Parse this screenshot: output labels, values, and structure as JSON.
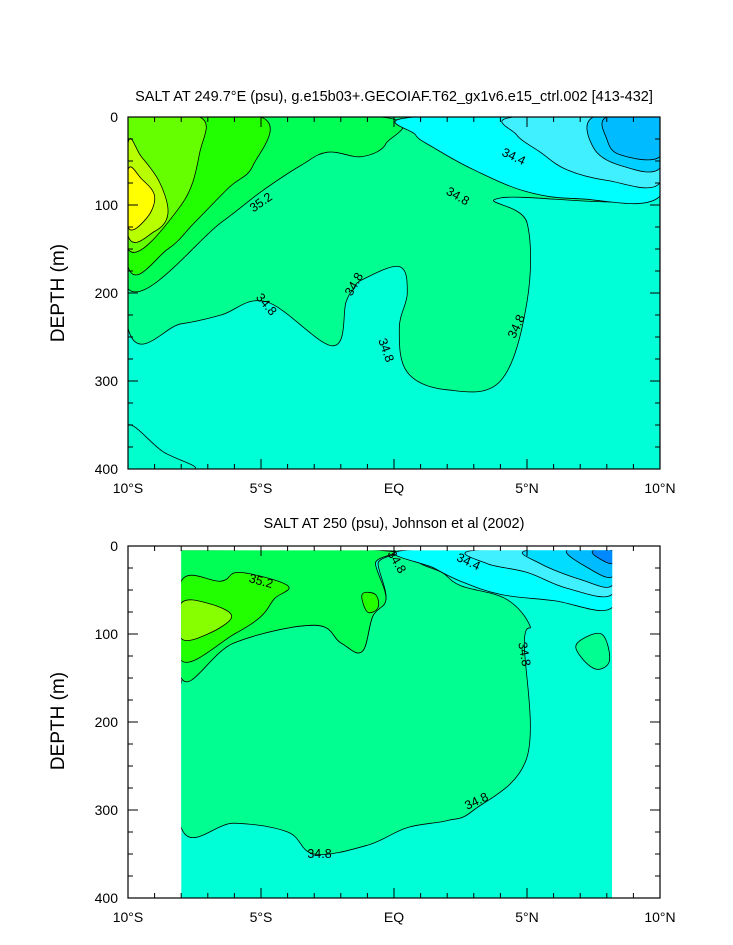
{
  "chart_data": [
    {
      "type": "contour",
      "title": "SALT AT 249.7°E (psu), g.e15b03+.GECOIAF.T62_gx1v6.e15_ctrl.002 [413-432]",
      "ylabel": "DEPTH (m)",
      "xlabel": "",
      "x_ticks": [
        "10°S",
        "5°S",
        "EQ",
        "5°N",
        "10°N"
      ],
      "x_tick_values": [
        -10,
        -5,
        0,
        5,
        10
      ],
      "y_ticks": [
        "0",
        "100",
        "200",
        "300",
        "400"
      ],
      "y_tick_values": [
        0,
        100,
        200,
        300,
        400
      ],
      "xlim": [
        -10,
        10
      ],
      "ylim": [
        400,
        0
      ],
      "y_inverted": true,
      "contour_interval": 0.2,
      "contour_labels": [
        {
          "text": "35.2",
          "x": -5,
          "y": 97,
          "rot": -35
        },
        {
          "text": "34.4",
          "x": 4.5,
          "y": 45,
          "rot": 25
        },
        {
          "text": "34.8",
          "x": 2.4,
          "y": 90,
          "rot": 30
        },
        {
          "text": "34.8",
          "x": -1.5,
          "y": 190,
          "rot": -60
        },
        {
          "text": "34.8",
          "x": -4.8,
          "y": 213,
          "rot": 50
        },
        {
          "text": "34.8",
          "x": -0.3,
          "y": 265,
          "rot": 70
        },
        {
          "text": "34.8",
          "x": 4.6,
          "y": 238,
          "rot": -65
        }
      ],
      "filled_regions": [
        {
          "level": "34.8-35.0",
          "color": "#00ff90",
          "pts": [
            [
              -10,
              0
            ],
            [
              10,
              0
            ],
            [
              10,
              90
            ],
            [
              4,
              92
            ],
            [
              5,
              120
            ],
            [
              5,
              210
            ],
            [
              4,
              300
            ],
            [
              2,
              310
            ],
            [
              0.5,
              290
            ],
            [
              0.2,
              240
            ],
            [
              0.5,
              200
            ],
            [
              0.2,
              170
            ],
            [
              -1.2,
              185
            ],
            [
              -1.5,
              195
            ],
            [
              -1.8,
              210
            ],
            [
              -2.3,
              260
            ],
            [
              -4.8,
              210
            ],
            [
              -6.5,
              225
            ],
            [
              -8,
              235
            ],
            [
              -10,
              240
            ]
          ]
        },
        {
          "level": "35.0-35.2",
          "color": "#00ff55",
          "pts": [
            [
              -10,
              0
            ],
            [
              -0.5,
              0
            ],
            [
              -0.3,
              30
            ],
            [
              -1.2,
              45
            ],
            [
              -2.5,
              40
            ],
            [
              -3.5,
              55
            ],
            [
              -5,
              85
            ],
            [
              -6.5,
              120
            ],
            [
              -10,
              195
            ]
          ]
        },
        {
          "level": "35.2-35.4",
          "color": "#22ff00",
          "pts": [
            [
              -10,
              0
            ],
            [
              -5,
              0
            ],
            [
              -5.3,
              55
            ],
            [
              -6.2,
              80
            ],
            [
              -7.5,
              120
            ],
            [
              -8.5,
              150
            ],
            [
              -10,
              170
            ]
          ]
        },
        {
          "level": "35.4-35.6",
          "color": "#66ff00",
          "pts": [
            [
              -10,
              0
            ],
            [
              -7.3,
              0
            ],
            [
              -7.3,
              40
            ],
            [
              -8,
              100
            ],
            [
              -10,
              150
            ]
          ]
        },
        {
          "level": "35.6-35.8",
          "color": "#b8ff00",
          "pts": [
            [
              -10,
              30
            ],
            [
              -9.5,
              45
            ],
            [
              -8.8,
              75
            ],
            [
              -8.5,
              110
            ],
            [
              -9,
              130
            ],
            [
              -10,
              135
            ]
          ]
        },
        {
          "level": "35.8-36.0",
          "color": "#ffff00",
          "pts": [
            [
              -10,
              60
            ],
            [
              -9.5,
              70
            ],
            [
              -9,
              90
            ],
            [
              -9.3,
              115
            ],
            [
              -10,
              125
            ]
          ]
        },
        {
          "level": "34.6-34.8",
          "color": "#00ffff",
          "pts": [
            [
              0.8,
              0
            ],
            [
              10,
              0
            ],
            [
              10,
              90
            ],
            [
              7,
              93
            ],
            [
              5,
              85
            ],
            [
              3,
              60
            ],
            [
              1.5,
              35
            ],
            [
              0.8,
              20
            ]
          ]
        },
        {
          "level": "34.4-34.6",
          "color": "#40f0ff",
          "pts": [
            [
              4.5,
              0
            ],
            [
              10,
              0
            ],
            [
              10,
              75
            ],
            [
              8,
              72
            ],
            [
              6.5,
              60
            ],
            [
              5.5,
              40
            ],
            [
              4.6,
              20
            ]
          ]
        },
        {
          "level": "34.2-34.4",
          "color": "#00cfff",
          "pts": [
            [
              7.5,
              0
            ],
            [
              10,
              0
            ],
            [
              10,
              58
            ],
            [
              8.5,
              55
            ],
            [
              7.5,
              35
            ]
          ]
        },
        {
          "level": "34.0-34.2",
          "color": "#00bbff",
          "pts": [
            [
              10,
              0
            ],
            [
              10,
              45
            ],
            [
              8.5,
              43
            ],
            [
              8,
              25
            ],
            [
              8,
              0
            ]
          ]
        },
        {
          "level": "34.8-35.0",
          "color": "#00ffcc",
          "pts": [
            [
              -10,
              350
            ],
            [
              -8.7,
              380
            ],
            [
              -7.5,
              400
            ],
            [
              -10,
              400
            ]
          ]
        }
      ],
      "colors": {
        "background": "#00ffd7",
        "line": "#000000"
      }
    },
    {
      "type": "contour",
      "title": "SALT AT 250 (psu), Johnson et al (2002)",
      "ylabel": "DEPTH (m)",
      "xlabel": "",
      "x_ticks": [
        "10°S",
        "5°S",
        "EQ",
        "5°N",
        "10°N"
      ],
      "x_tick_values": [
        -10,
        -5,
        0,
        5,
        10
      ],
      "y_ticks": [
        "0",
        "100",
        "200",
        "300",
        "400"
      ],
      "y_tick_values": [
        0,
        100,
        200,
        300,
        400
      ],
      "xlim": [
        -10,
        10
      ],
      "ylim": [
        400,
        0
      ],
      "y_inverted": true,
      "data_extent": {
        "x": [
          -8,
          8.2
        ],
        "y": [
          5,
          400
        ]
      },
      "contour_interval": 0.2,
      "contour_labels": [
        {
          "text": "35.2",
          "x": -5,
          "y": 40,
          "rot": 15
        },
        {
          "text": "34.8",
          "x": 0.1,
          "y": 18,
          "rot": 60
        },
        {
          "text": "34.4",
          "x": 2.8,
          "y": 18,
          "rot": 25
        },
        {
          "text": "34.8",
          "x": 4.9,
          "y": 123,
          "rot": 80
        },
        {
          "text": "34.8",
          "x": 3.1,
          "y": 290,
          "rot": -25
        },
        {
          "text": "34.8",
          "x": -2.8,
          "y": 350,
          "rot": 0
        }
      ],
      "filled_regions": [
        {
          "level": "34.8-35.0",
          "color": "#00ff90",
          "pts": [
            [
              -8,
              5
            ],
            [
              -0.4,
              5
            ],
            [
              -0.6,
              20
            ],
            [
              -0.3,
              60
            ],
            [
              -0.8,
              80
            ],
            [
              -1.2,
              120
            ],
            [
              -2,
              110
            ],
            [
              -3,
              90
            ],
            [
              -6,
              110
            ],
            [
              -8,
              155
            ],
            [
              -8,
              320
            ],
            [
              -6,
              315
            ],
            [
              -4,
              325
            ],
            [
              -3,
              350
            ],
            [
              -1,
              340
            ],
            [
              0.5,
              320
            ],
            [
              2,
              312
            ],
            [
              3,
              300
            ],
            [
              5,
              240
            ],
            [
              4.9,
              110
            ],
            [
              5.1,
              90
            ],
            [
              4.2,
              60
            ],
            [
              2.5,
              45
            ],
            [
              1.8,
              30
            ],
            [
              1,
              20
            ],
            [
              0.4,
              5
            ]
          ]
        },
        {
          "level": "35.0-35.2",
          "color": "#00ff55",
          "pts": [
            [
              -8,
              5
            ],
            [
              -0.5,
              5
            ],
            [
              -0.7,
              20
            ],
            [
              -0.3,
              60
            ],
            [
              -0.8,
              80
            ],
            [
              -1.2,
              120
            ],
            [
              -2,
              110
            ],
            [
              -3,
              90
            ],
            [
              -6,
              110
            ],
            [
              -8,
              150
            ]
          ]
        },
        {
          "level": "35.2-35.4",
          "color": "#22ff00",
          "pts": [
            [
              -8,
              40
            ],
            [
              -6.5,
              40
            ],
            [
              -5.8,
              30
            ],
            [
              -4,
              45
            ],
            [
              -4.5,
              60
            ],
            [
              -5,
              80
            ],
            [
              -6,
              100
            ],
            [
              -8,
              130
            ]
          ]
        },
        {
          "level": "35.4-35.6",
          "color": "#88ff00",
          "pts": [
            [
              -8,
              65
            ],
            [
              -7,
              65
            ],
            [
              -6.1,
              80
            ],
            [
              -7,
              100
            ],
            [
              -8,
              105
            ]
          ]
        },
        {
          "level": "35.2-35.4",
          "color": "#22ff00",
          "pts": [
            [
              -1.2,
              55
            ],
            [
              -0.7,
              55
            ],
            [
              -0.6,
              70
            ],
            [
              -1,
              75
            ]
          ]
        },
        {
          "level": "34.6-34.8",
          "color": "#00ffff",
          "pts": [
            [
              0.4,
              5
            ],
            [
              8.2,
              5
            ],
            [
              8.2,
              70
            ],
            [
              6,
              62
            ],
            [
              4,
              55
            ],
            [
              2.5,
              40
            ],
            [
              1.5,
              25
            ]
          ]
        },
        {
          "level": "34.4-34.6",
          "color": "#40f0ff",
          "pts": [
            [
              3,
              5
            ],
            [
              8.2,
              5
            ],
            [
              8.2,
              55
            ],
            [
              6.5,
              48
            ],
            [
              5,
              30
            ],
            [
              3.5,
              20
            ]
          ]
        },
        {
          "level": "34.2-34.4",
          "color": "#00ddff",
          "pts": [
            [
              5,
              5
            ],
            [
              8.2,
              5
            ],
            [
              8.2,
              45
            ],
            [
              7,
              38
            ],
            [
              5.5,
              20
            ]
          ]
        },
        {
          "level": "34.0-34.2",
          "color": "#00bbff",
          "pts": [
            [
              6.5,
              5
            ],
            [
              8.2,
              5
            ],
            [
              8.2,
              35
            ],
            [
              7.3,
              25
            ]
          ]
        },
        {
          "level": "33.8-34.0",
          "color": "#0088ff",
          "pts": [
            [
              7.5,
              5
            ],
            [
              8.2,
              5
            ],
            [
              8.2,
              20
            ],
            [
              7.6,
              12
            ]
          ]
        },
        {
          "level": "34.8-35.0",
          "color": "#00ff90",
          "pts": [
            [
              6.9,
              110
            ],
            [
              7.8,
              100
            ],
            [
              8.1,
              130
            ],
            [
              7.6,
              140
            ],
            [
              7,
              125
            ]
          ]
        }
      ],
      "colors": {
        "background": "#00ffd7",
        "line": "#000000"
      }
    }
  ]
}
